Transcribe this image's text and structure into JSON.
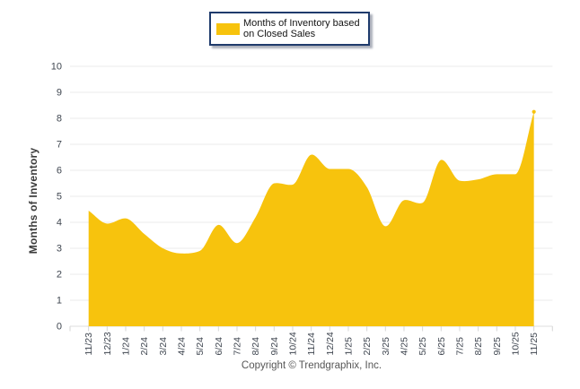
{
  "chart_data": {
    "type": "area",
    "smooth": true,
    "categories": [
      "11/23",
      "12/23",
      "1/24",
      "2/24",
      "3/24",
      "4/24",
      "5/24",
      "6/24",
      "7/24",
      "8/24",
      "9/24",
      "10/24",
      "11/24",
      "12/24",
      "1/25",
      "2/25",
      "3/25",
      "4/25",
      "5/25",
      "6/25",
      "7/25",
      "8/25",
      "9/25",
      "10/25",
      "11/25"
    ],
    "values": [
      4.45,
      3.95,
      4.15,
      3.55,
      3.0,
      2.8,
      2.9,
      3.9,
      3.2,
      4.2,
      5.5,
      5.45,
      6.6,
      6.05,
      6.05,
      5.35,
      3.85,
      4.85,
      4.75,
      6.4,
      5.6,
      5.65,
      5.85,
      5.85,
      8.25
    ],
    "title": "",
    "xlabel": "",
    "ylabel": "Months of Inventory",
    "ylim": [
      0,
      10
    ],
    "yticks": [
      0,
      1,
      2,
      3,
      4,
      5,
      6,
      7,
      8,
      9,
      10
    ],
    "grid": "horizontal",
    "legend_position": "top",
    "legend_label": "Months of Inventory based on Closed Sales"
  },
  "footer": {
    "copyright": "Copyright © Trendgraphix, Inc."
  },
  "colors": {
    "area": "#F7C30D",
    "legend_border": "#1F3B6C",
    "grid": "#EBEBEB",
    "axis_line": "#DCDCDC",
    "tick": "#D6D6D6",
    "tick_label": "#3F4650",
    "axis_title": "#3B3B3B",
    "copyright": "#565656",
    "background": "#FFFFFF"
  }
}
